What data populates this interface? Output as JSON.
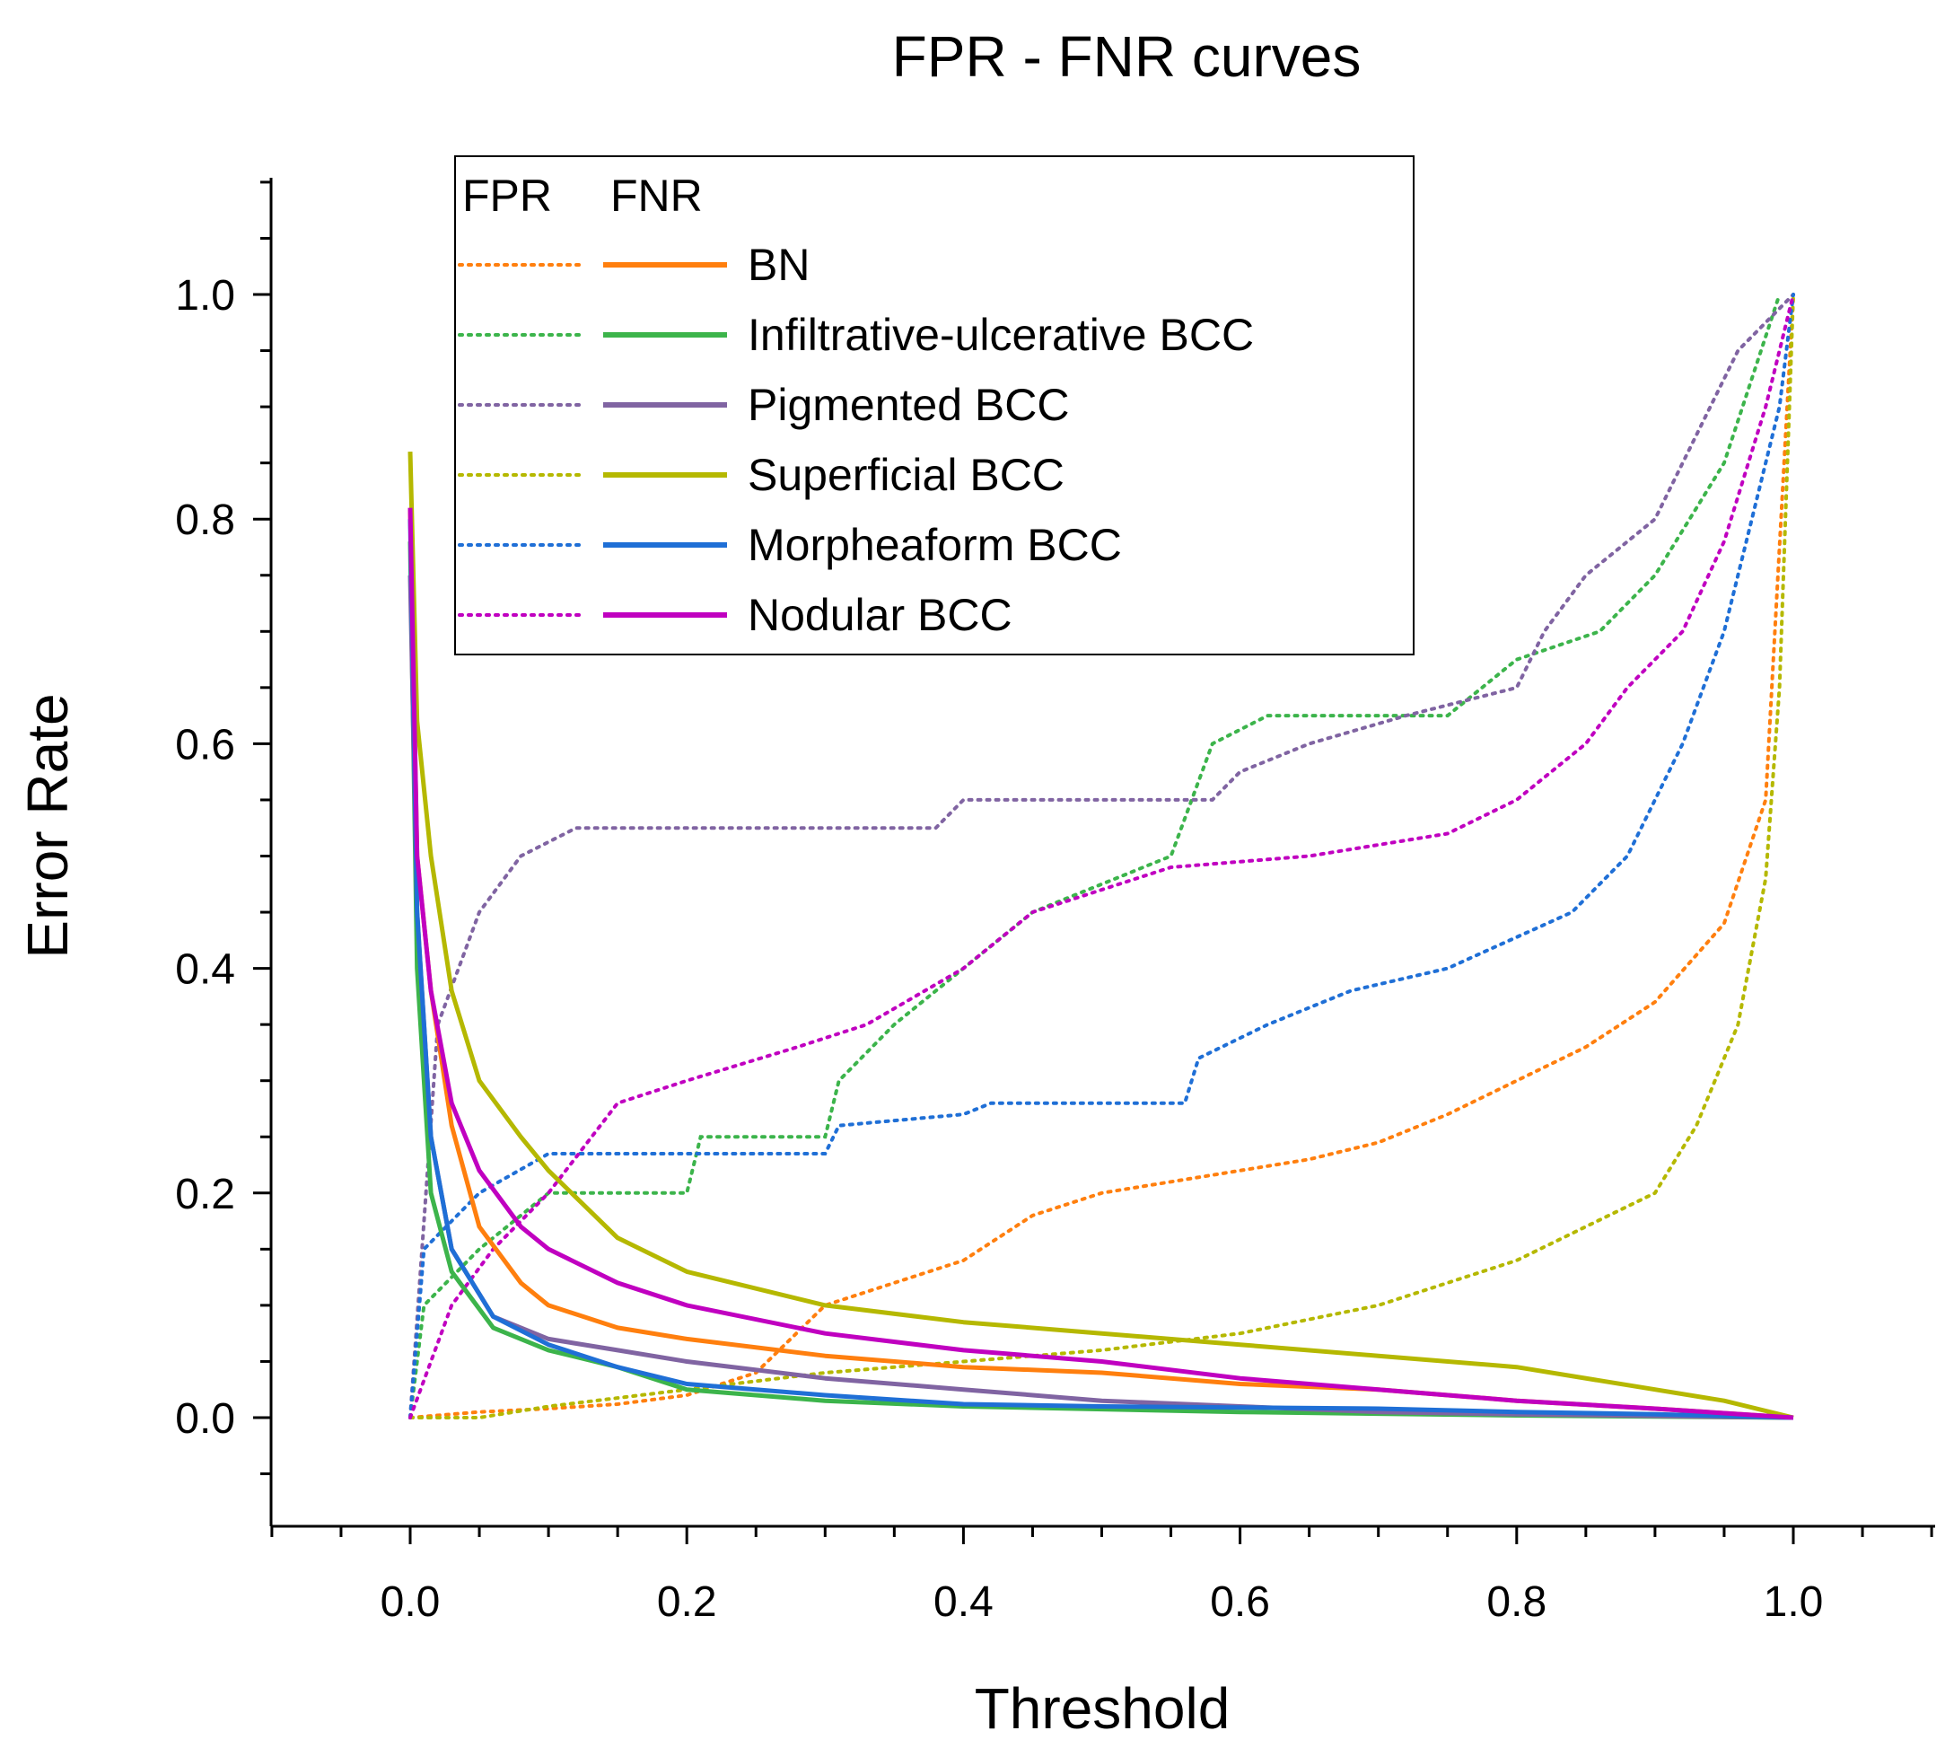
{
  "chart_data": {
    "type": "line",
    "title": "FPR - FNR curves",
    "xlabel": "Threshold",
    "ylabel": "Error Rate",
    "xlim": [
      -0.1,
      1.1
    ],
    "ylim": [
      -0.1,
      1.1
    ],
    "x_ticks": [
      "0.0",
      "0.2",
      "0.4",
      "0.6",
      "0.8",
      "1.0"
    ],
    "x_tick_values": [
      0,
      0.2,
      0.4,
      0.6,
      0.8,
      1.0
    ],
    "y_ticks": [
      "0.0",
      "0.2",
      "0.4",
      "0.6",
      "0.8",
      "1.0"
    ],
    "y_tick_values": [
      0,
      0.2,
      0.4,
      0.6,
      0.8,
      1.0
    ],
    "legend": {
      "header_fpr": "FPR",
      "header_fnr": "FNR",
      "placement": "top-left"
    },
    "series": [
      {
        "name": "BN",
        "color": "#ff7f0e",
        "fpr": [
          [
            0,
            0
          ],
          [
            0.05,
            0.005
          ],
          [
            0.1,
            0.008
          ],
          [
            0.15,
            0.012
          ],
          [
            0.2,
            0.02
          ],
          [
            0.25,
            0.04
          ],
          [
            0.3,
            0.1
          ],
          [
            0.35,
            0.12
          ],
          [
            0.4,
            0.14
          ],
          [
            0.45,
            0.18
          ],
          [
            0.5,
            0.2
          ],
          [
            0.55,
            0.21
          ],
          [
            0.6,
            0.22
          ],
          [
            0.65,
            0.23
          ],
          [
            0.7,
            0.245
          ],
          [
            0.75,
            0.27
          ],
          [
            0.8,
            0.3
          ],
          [
            0.85,
            0.33
          ],
          [
            0.9,
            0.37
          ],
          [
            0.95,
            0.44
          ],
          [
            0.98,
            0.55
          ],
          [
            1.0,
            1.0
          ]
        ],
        "fnr": [
          [
            0,
            0.81
          ],
          [
            0.005,
            0.5
          ],
          [
            0.015,
            0.38
          ],
          [
            0.03,
            0.26
          ],
          [
            0.05,
            0.17
          ],
          [
            0.08,
            0.12
          ],
          [
            0.1,
            0.1
          ],
          [
            0.15,
            0.08
          ],
          [
            0.2,
            0.07
          ],
          [
            0.3,
            0.055
          ],
          [
            0.4,
            0.045
          ],
          [
            0.5,
            0.04
          ],
          [
            0.6,
            0.03
          ],
          [
            0.7,
            0.025
          ],
          [
            0.8,
            0.015
          ],
          [
            0.9,
            0.008
          ],
          [
            1.0,
            0.0
          ]
        ]
      },
      {
        "name": "Infiltrative-ulcerative  BCC",
        "color": "#3cb44b",
        "fpr": [
          [
            0,
            0
          ],
          [
            0.01,
            0.1
          ],
          [
            0.05,
            0.15
          ],
          [
            0.1,
            0.2
          ],
          [
            0.2,
            0.2
          ],
          [
            0.21,
            0.25
          ],
          [
            0.3,
            0.25
          ],
          [
            0.31,
            0.3
          ],
          [
            0.35,
            0.35
          ],
          [
            0.4,
            0.4
          ],
          [
            0.45,
            0.45
          ],
          [
            0.5,
            0.475
          ],
          [
            0.55,
            0.5
          ],
          [
            0.58,
            0.6
          ],
          [
            0.62,
            0.625
          ],
          [
            0.75,
            0.625
          ],
          [
            0.8,
            0.675
          ],
          [
            0.86,
            0.7
          ],
          [
            0.9,
            0.75
          ],
          [
            0.95,
            0.85
          ],
          [
            0.99,
            1.0
          ]
        ],
        "fnr": [
          [
            0,
            0.78
          ],
          [
            0.005,
            0.4
          ],
          [
            0.015,
            0.2
          ],
          [
            0.03,
            0.13
          ],
          [
            0.06,
            0.08
          ],
          [
            0.1,
            0.06
          ],
          [
            0.15,
            0.045
          ],
          [
            0.2,
            0.025
          ],
          [
            0.3,
            0.015
          ],
          [
            0.4,
            0.01
          ],
          [
            0.6,
            0.005
          ],
          [
            0.8,
            0.002
          ],
          [
            1.0,
            0.0
          ]
        ]
      },
      {
        "name": "Pigmented  BCC",
        "color": "#8064a2",
        "fpr": [
          [
            0,
            0
          ],
          [
            0.02,
            0.35
          ],
          [
            0.05,
            0.45
          ],
          [
            0.08,
            0.5
          ],
          [
            0.12,
            0.525
          ],
          [
            0.38,
            0.525
          ],
          [
            0.4,
            0.55
          ],
          [
            0.58,
            0.55
          ],
          [
            0.6,
            0.575
          ],
          [
            0.65,
            0.6
          ],
          [
            0.72,
            0.625
          ],
          [
            0.8,
            0.65
          ],
          [
            0.82,
            0.7
          ],
          [
            0.85,
            0.75
          ],
          [
            0.9,
            0.8
          ],
          [
            0.93,
            0.875
          ],
          [
            0.96,
            0.95
          ],
          [
            1.0,
            1.0
          ]
        ],
        "fnr": [
          [
            0,
            0.75
          ],
          [
            0.005,
            0.45
          ],
          [
            0.015,
            0.25
          ],
          [
            0.03,
            0.15
          ],
          [
            0.06,
            0.09
          ],
          [
            0.1,
            0.07
          ],
          [
            0.15,
            0.06
          ],
          [
            0.2,
            0.05
          ],
          [
            0.3,
            0.035
          ],
          [
            0.4,
            0.025
          ],
          [
            0.5,
            0.015
          ],
          [
            0.6,
            0.01
          ],
          [
            0.7,
            0.005
          ],
          [
            0.8,
            0.003
          ],
          [
            1.0,
            0.0
          ]
        ]
      },
      {
        "name": "Superficial BCC",
        "color": "#b5b800",
        "fpr": [
          [
            0,
            0
          ],
          [
            0.05,
            0
          ],
          [
            0.1,
            0.01
          ],
          [
            0.2,
            0.025
          ],
          [
            0.3,
            0.04
          ],
          [
            0.4,
            0.05
          ],
          [
            0.5,
            0.06
          ],
          [
            0.6,
            0.075
          ],
          [
            0.7,
            0.1
          ],
          [
            0.8,
            0.14
          ],
          [
            0.85,
            0.17
          ],
          [
            0.9,
            0.2
          ],
          [
            0.93,
            0.26
          ],
          [
            0.96,
            0.35
          ],
          [
            0.98,
            0.48
          ],
          [
            0.99,
            0.65
          ],
          [
            1.0,
            1.0
          ]
        ],
        "fnr": [
          [
            0,
            0.86
          ],
          [
            0.005,
            0.62
          ],
          [
            0.015,
            0.5
          ],
          [
            0.03,
            0.38
          ],
          [
            0.05,
            0.3
          ],
          [
            0.08,
            0.25
          ],
          [
            0.1,
            0.22
          ],
          [
            0.15,
            0.16
          ],
          [
            0.2,
            0.13
          ],
          [
            0.3,
            0.1
          ],
          [
            0.4,
            0.085
          ],
          [
            0.5,
            0.075
          ],
          [
            0.6,
            0.065
          ],
          [
            0.7,
            0.055
          ],
          [
            0.8,
            0.045
          ],
          [
            0.9,
            0.025
          ],
          [
            0.95,
            0.015
          ],
          [
            1.0,
            0.0
          ]
        ]
      },
      {
        "name": "Morpheaform BCC",
        "color": "#1f6fd6",
        "fpr": [
          [
            0,
            0
          ],
          [
            0.01,
            0.15
          ],
          [
            0.05,
            0.2
          ],
          [
            0.1,
            0.235
          ],
          [
            0.3,
            0.235
          ],
          [
            0.31,
            0.26
          ],
          [
            0.4,
            0.27
          ],
          [
            0.42,
            0.28
          ],
          [
            0.56,
            0.28
          ],
          [
            0.57,
            0.32
          ],
          [
            0.62,
            0.35
          ],
          [
            0.68,
            0.38
          ],
          [
            0.75,
            0.4
          ],
          [
            0.84,
            0.45
          ],
          [
            0.88,
            0.5
          ],
          [
            0.9,
            0.55
          ],
          [
            0.92,
            0.6
          ],
          [
            0.95,
            0.7
          ],
          [
            0.97,
            0.8
          ],
          [
            0.99,
            0.9
          ],
          [
            1.0,
            1.0
          ]
        ],
        "fnr": [
          [
            0,
            0.8
          ],
          [
            0.005,
            0.45
          ],
          [
            0.015,
            0.25
          ],
          [
            0.03,
            0.15
          ],
          [
            0.06,
            0.09
          ],
          [
            0.1,
            0.065
          ],
          [
            0.15,
            0.045
          ],
          [
            0.2,
            0.03
          ],
          [
            0.3,
            0.02
          ],
          [
            0.4,
            0.012
          ],
          [
            0.5,
            0.01
          ],
          [
            0.7,
            0.008
          ],
          [
            0.8,
            0.005
          ],
          [
            0.9,
            0.003
          ],
          [
            1.0,
            0.0
          ]
        ]
      },
      {
        "name": "Nodular BCC",
        "color": "#c000c0",
        "fpr": [
          [
            0,
            0
          ],
          [
            0.03,
            0.1
          ],
          [
            0.06,
            0.15
          ],
          [
            0.1,
            0.2
          ],
          [
            0.15,
            0.28
          ],
          [
            0.2,
            0.3
          ],
          [
            0.28,
            0.33
          ],
          [
            0.33,
            0.35
          ],
          [
            0.4,
            0.4
          ],
          [
            0.45,
            0.45
          ],
          [
            0.55,
            0.49
          ],
          [
            0.65,
            0.5
          ],
          [
            0.75,
            0.52
          ],
          [
            0.8,
            0.55
          ],
          [
            0.85,
            0.6
          ],
          [
            0.88,
            0.65
          ],
          [
            0.92,
            0.7
          ],
          [
            0.95,
            0.78
          ],
          [
            0.98,
            0.9
          ],
          [
            1.0,
            1.0
          ]
        ],
        "fnr": [
          [
            0,
            0.81
          ],
          [
            0.005,
            0.5
          ],
          [
            0.015,
            0.38
          ],
          [
            0.03,
            0.28
          ],
          [
            0.05,
            0.22
          ],
          [
            0.08,
            0.17
          ],
          [
            0.1,
            0.15
          ],
          [
            0.15,
            0.12
          ],
          [
            0.2,
            0.1
          ],
          [
            0.3,
            0.075
          ],
          [
            0.4,
            0.06
          ],
          [
            0.5,
            0.05
          ],
          [
            0.6,
            0.035
          ],
          [
            0.7,
            0.025
          ],
          [
            0.8,
            0.015
          ],
          [
            0.9,
            0.008
          ],
          [
            1.0,
            0.0
          ]
        ]
      }
    ]
  }
}
